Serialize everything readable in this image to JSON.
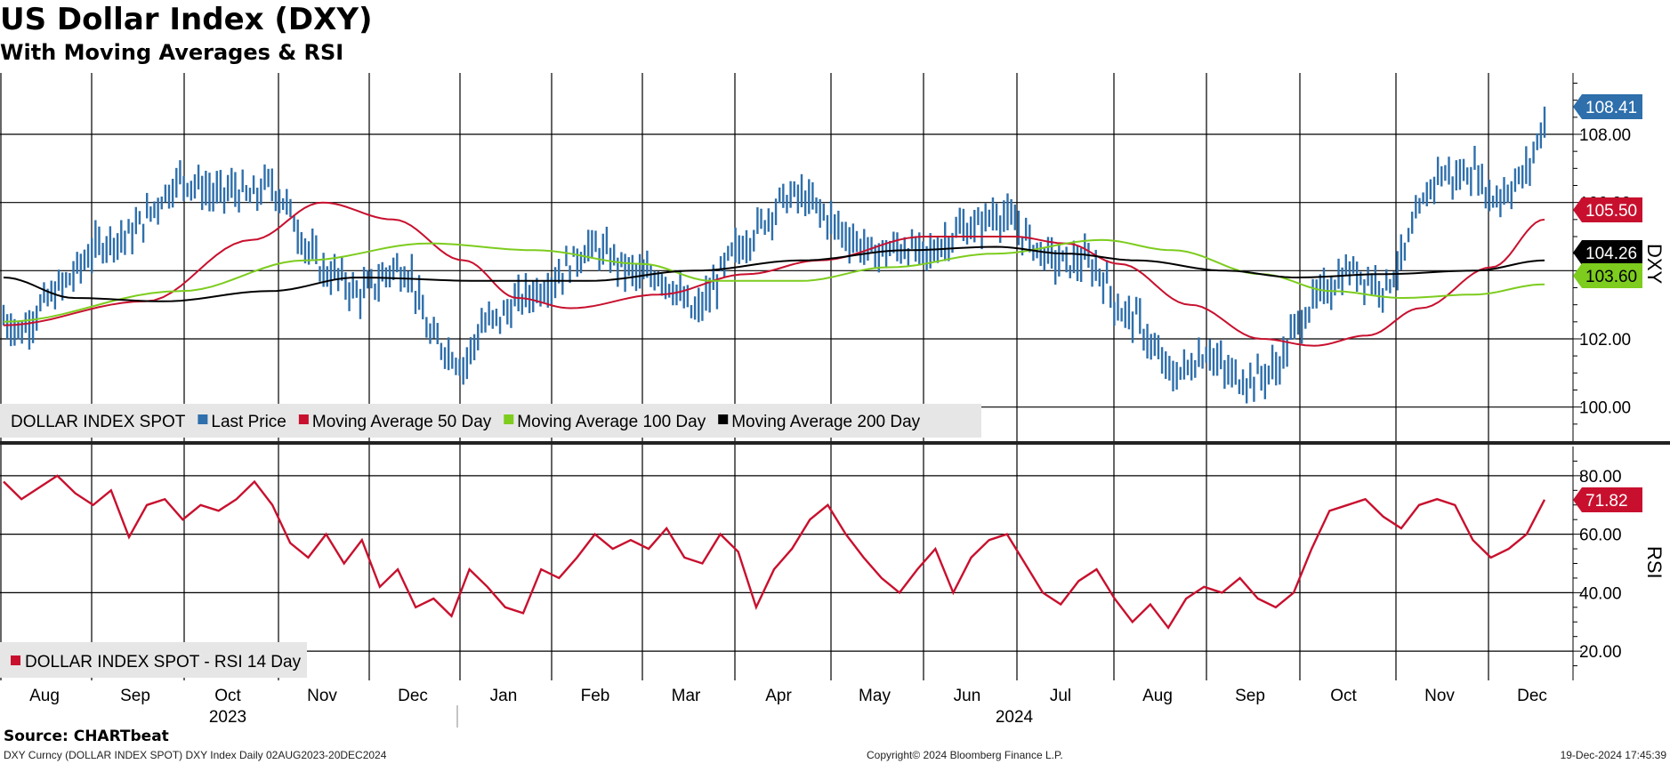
{
  "title": "US Dollar Index (DXY)",
  "subtitle": "With Moving Averages & RSI",
  "source": "Source: CHARTbeat",
  "footer": {
    "left": "DXY Curncy (DOLLAR INDEX SPOT) DXY Index  Daily 02AUG2023-20DEC2024",
    "center": "Copyright© 2024 Bloomberg Finance L.P.",
    "right": "19-Dec-2024 17:45:39"
  },
  "colors": {
    "price": "#2e6fac",
    "ma50": "#c8102e",
    "ma100": "#7dcc1e",
    "ma200": "#000000",
    "rsi": "#c8102e",
    "legend_bg": "#e6e6e6"
  },
  "chart_data": [
    {
      "type": "line",
      "panel": "price",
      "ylabel": "DXY",
      "ylim": [
        99.0,
        109.8
      ],
      "yticks": [
        100,
        102,
        104,
        106,
        108
      ],
      "ytick_labels": [
        "100.00",
        "102.00",
        "104.00",
        "106.00",
        "108.00"
      ],
      "grid": true,
      "x_months": [
        "Aug",
        "Sep",
        "Oct",
        "Nov",
        "Dec",
        "Jan",
        "Feb",
        "Mar",
        "Apr",
        "May",
        "Jun",
        "Jul",
        "Aug",
        "Sep",
        "Oct",
        "Nov",
        "Dec"
      ],
      "x_years": [
        "2023",
        "2024"
      ],
      "legend": [
        "DOLLAR INDEX SPOT",
        "Last Price",
        "Moving Average 50 Day",
        "Moving Average 100 Day",
        "Moving Average 200 Day"
      ],
      "last_value_labels": [
        {
          "series": "Last Price",
          "value": "108.41"
        },
        {
          "series": "Moving Average 50 Day",
          "value": "105.50"
        },
        {
          "series": "Moving Average 200 Day",
          "value": "104.26"
        },
        {
          "series": "Moving Average 100 Day",
          "value": "103.60"
        }
      ],
      "series": [
        {
          "name": "Last Price",
          "style": "bars",
          "week_closes": [
            102.6,
            102.2,
            102.9,
            103.4,
            103.9,
            104.6,
            104.9,
            105.0,
            105.5,
            106.2,
            106.7,
            106.5,
            106.2,
            106.4,
            106.1,
            106.6,
            105.9,
            104.8,
            104.0,
            103.8,
            103.3,
            103.6,
            104.1,
            103.9,
            102.1,
            101.7,
            101.2,
            102.4,
            102.6,
            103.1,
            103.4,
            103.7,
            104.2,
            104.7,
            104.5,
            104.1,
            103.8,
            103.9,
            103.4,
            102.7,
            103.4,
            104.4,
            104.9,
            105.5,
            106.1,
            106.2,
            105.8,
            105.3,
            104.9,
            104.5,
            104.6,
            104.7,
            104.4,
            104.8,
            105.2,
            105.3,
            105.7,
            105.4,
            104.8,
            104.4,
            104.2,
            104.3,
            103.9,
            102.8,
            102.6,
            101.6,
            100.9,
            101.2,
            101.7,
            101.0,
            100.8,
            100.9,
            101.2,
            102.4,
            103.1,
            103.6,
            104.0,
            103.8,
            103.5,
            104.4,
            105.8,
            106.9,
            106.7,
            107.0,
            106.1,
            106.4,
            106.9,
            108.4
          ]
        },
        {
          "name": "Moving Average 50 Day",
          "points": [
            [
              0,
              102.4
            ],
            [
              8,
              103.1
            ],
            [
              14,
              104.9
            ],
            [
              18,
              106.0
            ],
            [
              22,
              105.5
            ],
            [
              26,
              104.3
            ],
            [
              29,
              103.2
            ],
            [
              32,
              102.9
            ],
            [
              37,
              103.3
            ],
            [
              42,
              103.9
            ],
            [
              46,
              104.3
            ],
            [
              52,
              105.0
            ],
            [
              57,
              105.0
            ],
            [
              60,
              104.8
            ],
            [
              63,
              104.2
            ],
            [
              67,
              103.0
            ],
            [
              71,
              102.0
            ],
            [
              74,
              101.8
            ],
            [
              77,
              102.1
            ],
            [
              80,
              102.9
            ],
            [
              84,
              104.1
            ],
            [
              87,
              105.5
            ]
          ]
        },
        {
          "name": "Moving Average 100 Day",
          "points": [
            [
              0,
              102.5
            ],
            [
              10,
              103.4
            ],
            [
              17,
              104.3
            ],
            [
              24,
              104.8
            ],
            [
              30,
              104.6
            ],
            [
              36,
              104.2
            ],
            [
              40,
              103.7
            ],
            [
              45,
              103.7
            ],
            [
              50,
              104.1
            ],
            [
              56,
              104.5
            ],
            [
              62,
              104.9
            ],
            [
              66,
              104.6
            ],
            [
              71,
              103.9
            ],
            [
              75,
              103.4
            ],
            [
              79,
              103.2
            ],
            [
              83,
              103.3
            ],
            [
              87,
              103.6
            ]
          ]
        },
        {
          "name": "Moving Average 200 Day",
          "points": [
            [
              0,
              103.8
            ],
            [
              4,
              103.2
            ],
            [
              9,
              103.1
            ],
            [
              15,
              103.4
            ],
            [
              20,
              103.8
            ],
            [
              27,
              103.7
            ],
            [
              33,
              103.7
            ],
            [
              39,
              104.0
            ],
            [
              45,
              104.3
            ],
            [
              51,
              104.6
            ],
            [
              56,
              104.7
            ],
            [
              60,
              104.5
            ],
            [
              64,
              104.3
            ],
            [
              69,
              104.0
            ],
            [
              73,
              103.8
            ],
            [
              78,
              103.9
            ],
            [
              83,
              104.0
            ],
            [
              87,
              104.3
            ]
          ]
        }
      ]
    },
    {
      "type": "line",
      "panel": "rsi",
      "ylabel": "RSI",
      "ylim": [
        10,
        90
      ],
      "yticks": [
        20,
        40,
        60,
        80
      ],
      "ytick_labels": [
        "20.00",
        "40.00",
        "60.00",
        "80.00"
      ],
      "grid": true,
      "legend": [
        "DOLLAR INDEX SPOT - RSI 14 Day"
      ],
      "last_value_labels": [
        {
          "series": "DOLLAR INDEX SPOT - RSI 14 Day",
          "value": "71.82"
        }
      ],
      "series": [
        {
          "name": "DOLLAR INDEX SPOT - RSI 14 Day",
          "values": [
            78,
            72,
            76,
            80,
            74,
            70,
            75,
            59,
            70,
            72,
            65,
            70,
            68,
            72,
            78,
            70,
            57,
            52,
            60,
            50,
            58,
            42,
            48,
            35,
            38,
            32,
            48,
            42,
            35,
            33,
            48,
            45,
            52,
            60,
            55,
            58,
            55,
            62,
            52,
            50,
            60,
            54,
            35,
            48,
            55,
            65,
            70,
            60,
            52,
            45,
            40,
            48,
            55,
            40,
            52,
            58,
            60,
            50,
            40,
            36,
            44,
            48,
            38,
            30,
            36,
            28,
            38,
            42,
            40,
            45,
            38,
            35,
            40,
            55,
            68,
            70,
            72,
            66,
            62,
            70,
            72,
            70,
            58,
            52,
            55,
            60,
            71.82
          ]
        }
      ]
    }
  ]
}
